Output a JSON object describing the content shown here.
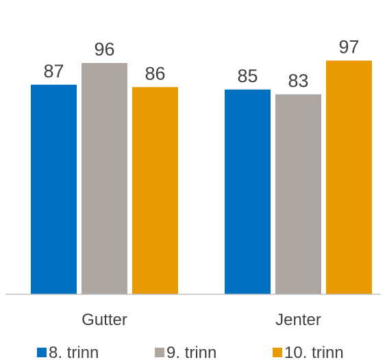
{
  "chart_data": {
    "type": "bar",
    "title": "",
    "xlabel": "",
    "ylabel": "",
    "categories": [
      "Gutter",
      "Jenter"
    ],
    "series": [
      {
        "name": "8. trinn",
        "values": [
          87,
          85
        ],
        "color": "#0070C0"
      },
      {
        "name": "9. trinn",
        "values": [
          96,
          83
        ],
        "color": "#ADA59F"
      },
      {
        "name": "10. trinn",
        "values": [
          86,
          97
        ],
        "color": "#E99A00"
      }
    ],
    "ylim": [
      0,
      100
    ],
    "grid": false,
    "legend_position": "bottom",
    "data_labels": true
  }
}
